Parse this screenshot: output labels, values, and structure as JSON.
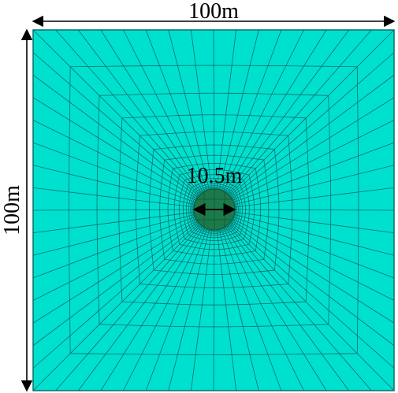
{
  "diagram": {
    "width_label": "100m",
    "height_label": "100m",
    "hole_label": "10.5m"
  },
  "colors": {
    "domain_fill": "#00e0cf",
    "mesh_line": "#0a6e6a",
    "hole_fill": "#1c7a4a",
    "hole_mesh": "#0f5535",
    "dimension": "#000000"
  }
}
